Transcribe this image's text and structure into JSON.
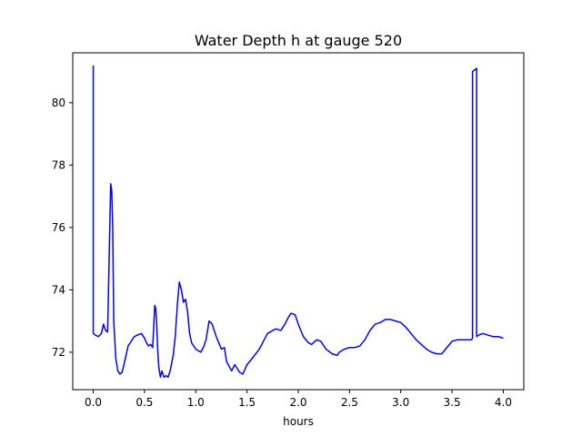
{
  "chart_data": {
    "type": "line",
    "title": "Water Depth h at gauge 520",
    "xlabel": "hours",
    "ylabel": "",
    "xlim": [
      -0.2,
      4.2
    ],
    "ylim": [
      70.8,
      81.6
    ],
    "xticks": [
      0.0,
      0.5,
      1.0,
      1.5,
      2.0,
      2.5,
      3.0,
      3.5,
      4.0
    ],
    "xtick_labels": [
      "0.0",
      "0.5",
      "1.0",
      "1.5",
      "2.0",
      "2.5",
      "3.0",
      "3.5",
      "4.0"
    ],
    "yticks": [
      72,
      74,
      76,
      78,
      80
    ],
    "ytick_labels": [
      "72",
      "74",
      "76",
      "78",
      "80"
    ],
    "grid": false,
    "series": [
      {
        "color": "#0000ff",
        "x": [
          0.0,
          0.0,
          0.02,
          0.05,
          0.08,
          0.1,
          0.12,
          0.14,
          0.155,
          0.17,
          0.18,
          0.19,
          0.2,
          0.22,
          0.24,
          0.26,
          0.28,
          0.3,
          0.32,
          0.34,
          0.36,
          0.4,
          0.43,
          0.47,
          0.5,
          0.52,
          0.54,
          0.56,
          0.58,
          0.6,
          0.61,
          0.62,
          0.63,
          0.64,
          0.655,
          0.67,
          0.69,
          0.71,
          0.73,
          0.75,
          0.78,
          0.8,
          0.82,
          0.84,
          0.86,
          0.88,
          0.9,
          0.92,
          0.94,
          0.96,
          1.0,
          1.05,
          1.08,
          1.1,
          1.13,
          1.16,
          1.2,
          1.25,
          1.28,
          1.3,
          1.35,
          1.38,
          1.4,
          1.43,
          1.46,
          1.5,
          1.55,
          1.62,
          1.7,
          1.78,
          1.83,
          1.87,
          1.9,
          1.93,
          1.97,
          2.0,
          2.05,
          2.1,
          2.13,
          2.18,
          2.22,
          2.27,
          2.33,
          2.38,
          2.4,
          2.45,
          2.5,
          2.55,
          2.6,
          2.65,
          2.7,
          2.75,
          2.8,
          2.85,
          2.9,
          2.95,
          3.0,
          3.05,
          3.1,
          3.15,
          3.2,
          3.25,
          3.3,
          3.35,
          3.4,
          3.45,
          3.5,
          3.55,
          3.6,
          3.65,
          3.69,
          3.7,
          3.7,
          3.74,
          3.74,
          3.76,
          3.8,
          3.85,
          3.9,
          3.95,
          4.0
        ],
        "y": [
          81.2,
          72.6,
          72.55,
          72.5,
          72.6,
          72.9,
          72.7,
          72.65,
          75.0,
          77.4,
          77.2,
          76.0,
          73.0,
          71.8,
          71.4,
          71.3,
          71.35,
          71.6,
          71.9,
          72.2,
          72.3,
          72.5,
          72.55,
          72.6,
          72.45,
          72.3,
          72.2,
          72.25,
          72.15,
          73.5,
          73.4,
          72.8,
          72.0,
          71.5,
          71.2,
          71.4,
          71.2,
          71.25,
          71.2,
          71.4,
          71.9,
          72.5,
          73.5,
          74.25,
          74.0,
          73.6,
          73.7,
          73.3,
          72.6,
          72.3,
          72.1,
          72.0,
          72.2,
          72.4,
          73.0,
          72.9,
          72.5,
          72.1,
          72.15,
          71.7,
          71.4,
          71.6,
          71.5,
          71.35,
          71.3,
          71.6,
          71.8,
          72.1,
          72.6,
          72.75,
          72.7,
          72.9,
          73.1,
          73.25,
          73.2,
          72.9,
          72.5,
          72.3,
          72.25,
          72.4,
          72.35,
          72.1,
          71.95,
          71.9,
          72.0,
          72.1,
          72.15,
          72.15,
          72.2,
          72.4,
          72.7,
          72.9,
          72.95,
          73.05,
          73.05,
          73.0,
          72.95,
          72.8,
          72.6,
          72.4,
          72.25,
          72.1,
          72.0,
          71.95,
          71.95,
          72.15,
          72.35,
          72.4,
          72.4,
          72.4,
          72.4,
          72.45,
          81.0,
          81.1,
          72.5,
          72.55,
          72.6,
          72.55,
          72.5,
          72.5,
          72.45
        ]
      }
    ]
  }
}
